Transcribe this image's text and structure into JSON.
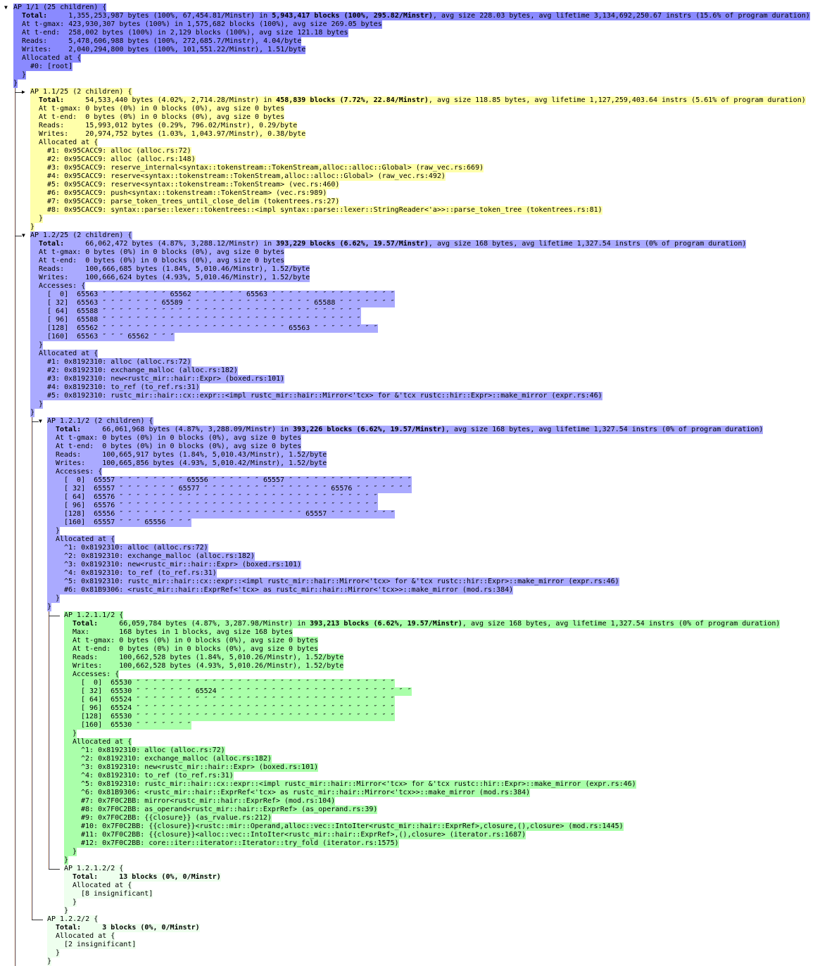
{
  "brace_close": "}",
  "colors": {
    "root": "#8a8aff",
    "blue": "#aaaaff",
    "yellow": "#ffffaa",
    "green": "#aaffaa",
    "pale_green": "#eeffee",
    "tree_line": "#8b5a3c"
  },
  "tree": {
    "toggle": "▼",
    "header": "AP 1/1 (25 children) {",
    "color": "#8a8aff",
    "stats": [
      {
        "label": "Total:",
        "pre": "1,355,253,987 bytes (100%, 67,454.81/Minstr) in ",
        "bold": "5,943,417 blocks (100%, 295.82/Minstr)",
        "post": ", avg size 228.03 bytes, avg lifetime 3,134,692,250.67 instrs (15.6% of program duration)"
      },
      {
        "label": "At t-gmax:",
        "pre": "423,930,307 bytes (100%) in 1,575,682 blocks (100%), avg size 269.05 bytes"
      },
      {
        "label": "At t-end:",
        "pre": "258,002 bytes (100%) in 2,129 blocks (100%), avg size 121.18 bytes"
      },
      {
        "label": "Reads:",
        "pre": "5,478,606,988 bytes (100%, 272,685.7/Minstr), 4.04/byte"
      },
      {
        "label": "Writes:",
        "pre": "2,040,294,800 bytes (100%, 101,551.22/Minstr), 1.51/byte"
      }
    ],
    "allocated_label": "Allocated at {",
    "frames": [
      "#0: [root]"
    ],
    "children": [
      {
        "toggle": "▶",
        "header": "AP 1.1/25 (2 children) {",
        "color": "#ffffaa",
        "stats": [
          {
            "label": "Total:",
            "pre": "54,533,440 bytes (4.02%, 2,714.28/Minstr) in ",
            "bold": "458,839 blocks (7.72%, 22.84/Minstr)",
            "post": ", avg size 118.85 bytes, avg lifetime 1,127,259,403.64 instrs (5.61% of program duration)"
          },
          {
            "label": "At t-gmax:",
            "pre": "0 bytes (0%) in 0 blocks (0%), avg size 0 bytes"
          },
          {
            "label": "At t-end:",
            "pre": "0 bytes (0%) in 0 blocks (0%), avg size 0 bytes"
          },
          {
            "label": "Reads:",
            "pre": "15,993,012 bytes (0.29%, 796.02/Minstr), 0.29/byte"
          },
          {
            "label": "Writes:",
            "pre": "20,974,752 bytes (1.03%, 1,043.97/Minstr), 0.38/byte"
          }
        ],
        "allocated_label": "Allocated at {",
        "frames": [
          "#1: 0x95CACC9: alloc (alloc.rs:72)",
          "#2: 0x95CACC9: alloc (alloc.rs:148)",
          "#3: 0x95CACC9: reserve_internal<syntax::tokenstream::TokenStream,alloc::alloc::Global> (raw_vec.rs:669)",
          "#4: 0x95CACC9: reserve<syntax::tokenstream::TokenStream,alloc::alloc::Global> (raw_vec.rs:492)",
          "#5: 0x95CACC9: reserve<syntax::tokenstream::TokenStream> (vec.rs:460)",
          "#6: 0x95CACC9: push<syntax::tokenstream::TokenStream> (vec.rs:989)",
          "#7: 0x95CACC9: parse_token_trees_until_close_delim (tokentrees.rs:27)",
          "#8: 0x95CACC9: syntax::parse::lexer::tokentrees::<impl syntax::parse::lexer::StringReader<'a>>::parse_token_tree (tokentrees.rs:81)"
        ]
      },
      {
        "toggle": "▼",
        "header": "AP 1.2/25 (2 children) {",
        "color": "#aaaaff",
        "stats": [
          {
            "label": "Total:",
            "pre": "66,062,472 bytes (4.87%, 3,288.12/Minstr) in ",
            "bold": "393,229 blocks (6.62%, 19.57/Minstr)",
            "post": ", avg size 168 bytes, avg lifetime 1,327.54 instrs (0% of program duration)"
          },
          {
            "label": "At t-gmax:",
            "pre": "0 bytes (0%) in 0 blocks (0%), avg size 0 bytes"
          },
          {
            "label": "At t-end:",
            "pre": "0 bytes (0%) in 0 blocks (0%), avg size 0 bytes"
          },
          {
            "label": "Reads:",
            "pre": "100,666,685 bytes (1.84%, 5,010.46/Minstr), 1.52/byte"
          },
          {
            "label": "Writes:",
            "pre": "100,666,624 bytes (4.93%, 5,010.46/Minstr), 1.52/byte"
          }
        ],
        "accesses_label": "Accesses: {",
        "accesses": [
          {
            "offset": "[  0]",
            "values": "65563 ″ ″ ″ ″ ″ ″ ″ ″ 65562 ″ ″ ″ ″ ″ ″ 65563 ″ ″ ″ ″ ″ ″ ″ ″ ″ ″ ″ ″ ″ ″ ″"
          },
          {
            "offset": "[ 32]",
            "values": "65563 ″ ″ ″ ″ ″ ″ ″ 65589 ″ ″ ″ ″ ″ ″ ″ ″ ″ ″ ″ ″ ″ ″ ″ 65588 ″ ″ ″ ″ ″ ″ ″"
          },
          {
            "offset": "[ 64]",
            "values": "65588 ″ ″ ″ ″ ″ ″ ″ ″ ″ ″ ″ ″ ″ ″ ″ ″ ″ ″ ″ ″ ″ ″ ″ ″ ″ ″ ″ ″ ″ ″ ″"
          },
          {
            "offset": "[ 96]",
            "values": "65588 ″ ″ ″ ″ ″ ″ ″ ″ ″ ″ ″ ″ ″ ″ ″ ″ ″ ″ ″ ″ ″ ″ ″ ″ ″ ″ ″ ″ ″ ″ ″"
          },
          {
            "offset": "[128]",
            "values": "65562 ″ ″ ″ ″ ″ ″ ″ ″ ″ ″ ″ ″ ″ ″ ″ ″ ″ ″ ″ ″ ″ ″ 65563 ″ ″ ″ ″ ″ ″ ″ ″"
          },
          {
            "offset": "[160]",
            "values": "65563 ″ ″ ″ 65562 ″ ″ ″"
          }
        ],
        "allocated_label": "Allocated at {",
        "frames": [
          "#1: 0x8192310: alloc (alloc.rs:72)",
          "#2: 0x8192310: exchange_malloc (alloc.rs:182)",
          "#3: 0x8192310: new<rustc_mir::hair::Expr> (boxed.rs:101)",
          "#4: 0x8192310: to_ref (to_ref.rs:31)",
          "#5: 0x8192310: rustc_mir::hair::cx::expr::<impl rustc_mir::hair::Mirror<'tcx> for &'tcx rustc::hir::Expr>::make_mirror (expr.rs:46)"
        ],
        "children": [
          {
            "toggle": "▼",
            "header": "AP 1.2.1/2 (2 children) {",
            "color": "#aaaaff",
            "stats": [
              {
                "label": "Total:",
                "pre": "66,061,968 bytes (4.87%, 3,288.09/Minstr) in ",
                "bold": "393,226 blocks (6.62%, 19.57/Minstr)",
                "post": ", avg size 168 bytes, avg lifetime 1,327.54 instrs (0% of program duration)"
              },
              {
                "label": "At t-gmax:",
                "pre": "0 bytes (0%) in 0 blocks (0%), avg size 0 bytes"
              },
              {
                "label": "At t-end:",
                "pre": "0 bytes (0%) in 0 blocks (0%), avg size 0 bytes"
              },
              {
                "label": "Reads:",
                "pre": "100,665,917 bytes (1.84%, 5,010.43/Minstr), 1.52/byte"
              },
              {
                "label": "Writes:",
                "pre": "100,665,856 bytes (4.93%, 5,010.42/Minstr), 1.52/byte"
              }
            ],
            "accesses_label": "Accesses: {",
            "accesses": [
              {
                "offset": "[  0]",
                "values": "65557 ″ ″ ″ ″ ″ ″ ″ ″ 65556 ″ ″ ″ ″ ″ ″ 65557 ″ ″ ″ ″ ″ ″ ″ ″ ″ ″ ″ ″ ″ ″ ″"
              },
              {
                "offset": "[ 32]",
                "values": "65557 ″ ″ ″ ″ ″ ″ ″ 65577 ″ ″ ″ ″ ″ ″ ″ ″ ″ ″ ″ ″ ″ ″ ″ 65576 ″ ″ ″ ″ ″ ″ ″"
              },
              {
                "offset": "[ 64]",
                "values": "65576 ″ ″ ″ ″ ″ ″ ″ ″ ″ ″ ″ ″ ″ ″ ″ ″ ″ ″ ″ ″ ″ ″ ″ ″ ″ ″ ″ ″ ″ ″ ″"
              },
              {
                "offset": "[ 96]",
                "values": "65576 ″ ″ ″ ″ ″ ″ ″ ″ ″ ″ ″ ″ ″ ″ ″ ″ ″ ″ ″ ″ ″ ″ ″ ″ ″ ″ ″ ″ ″ ″ ″"
              },
              {
                "offset": "[128]",
                "values": "65556 ″ ″ ″ ″ ″ ″ ″ ″ ″ ″ ″ ″ ″ ″ ″ ″ ″ ″ ″ ″ ″ ″ 65557 ″ ″ ″ ″ ″ ″ ″ ″"
              },
              {
                "offset": "[160]",
                "values": "65557 ″ ″ ″ 65556 ″ ″ ″"
              }
            ],
            "allocated_label": "Allocated at {",
            "frames": [
              "^1: 0x8192310: alloc (alloc.rs:72)",
              "^2: 0x8192310: exchange_malloc (alloc.rs:182)",
              "^3: 0x8192310: new<rustc_mir::hair::Expr> (boxed.rs:101)",
              "^4: 0x8192310: to_ref (to_ref.rs:31)",
              "^5: 0x8192310: rustc_mir::hair::cx::expr::<impl rustc_mir::hair::Mirror<'tcx> for &'tcx rustc::hir::Expr>::make_mirror (expr.rs:46)",
              "#6: 0x81B9306: <rustc_mir::hair::ExprRef<'tcx> as rustc_mir::hair::Mirror<'tcx>>::make_mirror (mod.rs:384)"
            ],
            "children": [
              {
                "toggle": "",
                "header": "AP 1.2.1.1/2 {",
                "color": "#aaffaa",
                "stats": [
                  {
                    "label": "Total:",
                    "pre": "66,059,784 bytes (4.87%, 3,287.98/Minstr) in ",
                    "bold": "393,213 blocks (6.62%, 19.57/Minstr)",
                    "post": ", avg size 168 bytes, avg lifetime 1,327.54 instrs (0% of program duration)"
                  },
                  {
                    "label": "Max:",
                    "pre": "168 bytes in 1 blocks, avg size 168 bytes"
                  },
                  {
                    "label": "At t-gmax:",
                    "pre": "0 bytes (0%) in 0 blocks (0%), avg size 0 bytes"
                  },
                  {
                    "label": "At t-end:",
                    "pre": "0 bytes (0%) in 0 blocks (0%), avg size 0 bytes"
                  },
                  {
                    "label": "Reads:",
                    "pre": "100,662,528 bytes (1.84%, 5,010.26/Minstr), 1.52/byte"
                  },
                  {
                    "label": "Writes:",
                    "pre": "100,662,528 bytes (4.93%, 5,010.26/Minstr), 1.52/byte"
                  }
                ],
                "accesses_label": "Accesses: {",
                "accesses": [
                  {
                    "offset": "[  0]",
                    "values": "65530 ″ ″ ″ ″ ″ ″ ″ ″ ″ ″ ″ ″ ″ ″ ″ ″ ″ ″ ″ ″ ″ ″ ″ ″ ″ ″ ″ ″ ″ ″ ″"
                  },
                  {
                    "offset": "[ 32]",
                    "values": "65530 ″ ″ ″ ″ ″ ″ ″ 65524 ″ ″ ″ ″ ″ ″ ″ ″ ″ ″ ″ ″ ″ ″ ″ ″ ″ ″ ″ ″ ″ ″ ″"
                  },
                  {
                    "offset": "[ 64]",
                    "values": "65524 ″ ″ ″ ″ ″ ″ ″ ″ ″ ″ ″ ″ ″ ″ ″ ″ ″ ″ ″ ″ ″ ″ ″ ″ ″ ″ ″ ″ ″ ″ ″"
                  },
                  {
                    "offset": "[ 96]",
                    "values": "65524 ″ ″ ″ ″ ″ ″ ″ ″ ″ ″ ″ ″ ″ ″ ″ ″ ″ ″ ″ ″ ″ ″ ″ ″ ″ ″ ″ ″ ″ ″ ″"
                  },
                  {
                    "offset": "[128]",
                    "values": "65530 ″ ″ ″ ″ ″ ″ ″ ″ ″ ″ ″ ″ ″ ″ ″ ″ ″ ″ ″ ″ ″ ″ ″ ″ ″ ″ ″ ″ ″ ″ ″"
                  },
                  {
                    "offset": "[160]",
                    "values": "65530 ″ ″ ″ ″ ″ ″ ″"
                  }
                ],
                "allocated_label": "Allocated at {",
                "frames": [
                  "^1: 0x8192310: alloc (alloc.rs:72)",
                  "^2: 0x8192310: exchange_malloc (alloc.rs:182)",
                  "^3: 0x8192310: new<rustc_mir::hair::Expr> (boxed.rs:101)",
                  "^4: 0x8192310: to_ref (to_ref.rs:31)",
                  "^5: 0x8192310: rustc_mir::hair::cx::expr::<impl rustc_mir::hair::Mirror<'tcx> for &'tcx rustc::hir::Expr>::make_mirror (expr.rs:46)",
                  "^6: 0x81B9306: <rustc_mir::hair::ExprRef<'tcx> as rustc_mir::hair::Mirror<'tcx>>::make_mirror (mod.rs:384)",
                  "#7: 0x7F0C2BB: mirror<rustc_mir::hair::ExprRef> (mod.rs:104)",
                  "#8: 0x7F0C2BB: as_operand<rustc_mir::hair::ExprRef> (as_operand.rs:39)",
                  "#9: 0x7F0C2BB: {{closure}} (as_rvalue.rs:212)",
                  "#10: 0x7F0C2BB: {{closure}}<rustc::mir::Operand,alloc::vec::IntoIter<rustc_mir::hair::ExprRef>,closure,(),closure> (mod.rs:1445)",
                  "#11: 0x7F0C2BB: {{closure}}<alloc::vec::IntoIter<rustc_mir::hair::ExprRef>,(),closure> (iterator.rs:1687)",
                  "#12: 0x7F0C2BB: core::iter::iterator::Iterator::try_fold (iterator.rs:1575)"
                ]
              },
              {
                "toggle": "",
                "header": "AP 1.2.1.2/2 {",
                "color": "#eeffee",
                "stats": [
                  {
                    "label": "Total:",
                    "bold": "13 blocks (0%, 0/Minstr)"
                  }
                ],
                "allocated_label": "Allocated at {",
                "frames": [
                  "[8 insignificant]"
                ]
              }
            ]
          },
          {
            "toggle": "",
            "header": "AP 1.2.2/2 {",
            "color": "#eeffee",
            "stats": [
              {
                "label": "Total:",
                "bold": "3 blocks (0%, 0/Minstr)"
              }
            ],
            "allocated_label": "Allocated at {",
            "frames": [
              "[2 insignificant]"
            ]
          }
        ]
      }
    ]
  }
}
